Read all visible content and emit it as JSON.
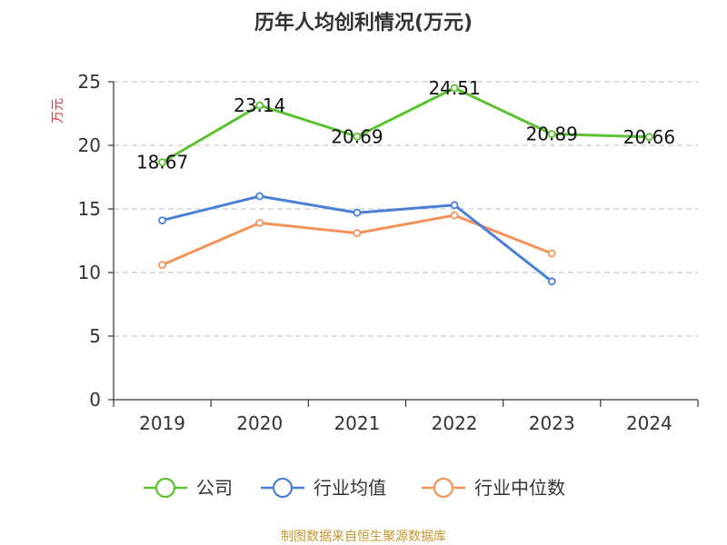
{
  "chart_data": {
    "type": "line",
    "title": "历年人均创利情况(万元)",
    "ylabel": "万元",
    "categories": [
      "2019",
      "2020",
      "2021",
      "2022",
      "2023",
      "2024"
    ],
    "ylim": [
      0,
      25
    ],
    "yticks": [
      "0",
      "5",
      "10",
      "15",
      "20",
      "25"
    ],
    "grid": true,
    "legend_position": "bottom",
    "series": [
      {
        "name": "公司",
        "color": "#5ac22e",
        "values": [
          18.67,
          23.14,
          20.69,
          24.51,
          20.89,
          20.66
        ],
        "labels": [
          "18.67",
          "23.14",
          "20.69",
          "24.51",
          "20.89",
          "20.66"
        ]
      },
      {
        "name": "行业均值",
        "color": "#4a7fd6",
        "values": [
          14.1,
          16.0,
          14.7,
          15.3,
          9.3,
          null
        ]
      },
      {
        "name": "行业中位数",
        "color": "#f4925a",
        "values": [
          10.6,
          13.9,
          13.1,
          14.5,
          11.5,
          null
        ]
      }
    ],
    "source": "制图数据来自恒生聚源数据库",
    "colors": {
      "ylabel": "#e0383e",
      "source": "#c8962e",
      "grid": "#cccccc",
      "axis": "#333333"
    }
  }
}
